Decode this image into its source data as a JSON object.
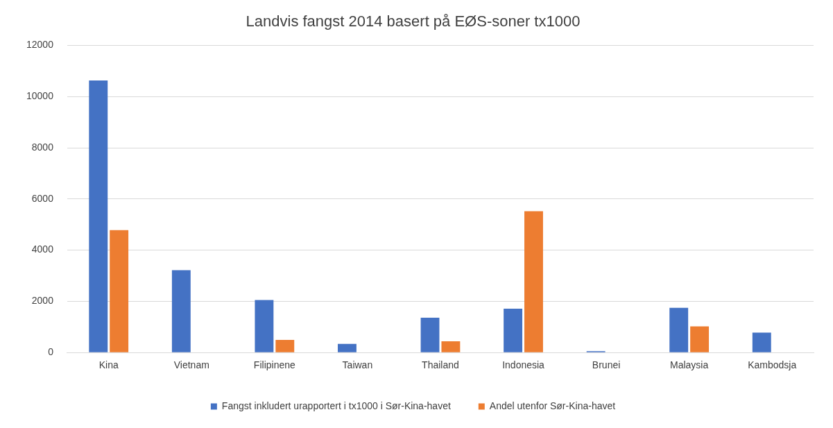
{
  "chart_data": {
    "type": "bar",
    "title": "Landvis fangst 2014 basert på EØS-soner tx1000",
    "categories": [
      "Kina",
      "Vietnam",
      "Filipinene",
      "Taiwan",
      "Thailand",
      "Indonesia",
      "Brunei",
      "Malaysia",
      "Kambodsja"
    ],
    "series": [
      {
        "name": "Fangst inkludert urapportert i tx1000 i Sør-Kina-havet",
        "color": "#4472c4",
        "values": [
          10630,
          3220,
          2050,
          340,
          1360,
          1710,
          50,
          1750,
          780
        ]
      },
      {
        "name": "Andel utenfor Sør-Kina-havet",
        "color": "#ed7d31",
        "values": [
          4780,
          null,
          490,
          null,
          440,
          5520,
          null,
          1020,
          null
        ]
      }
    ],
    "ylim": [
      0,
      12000
    ],
    "yticks": [
      0,
      2000,
      4000,
      6000,
      8000,
      10000,
      12000
    ],
    "grid": "y",
    "legend": "bottom"
  }
}
